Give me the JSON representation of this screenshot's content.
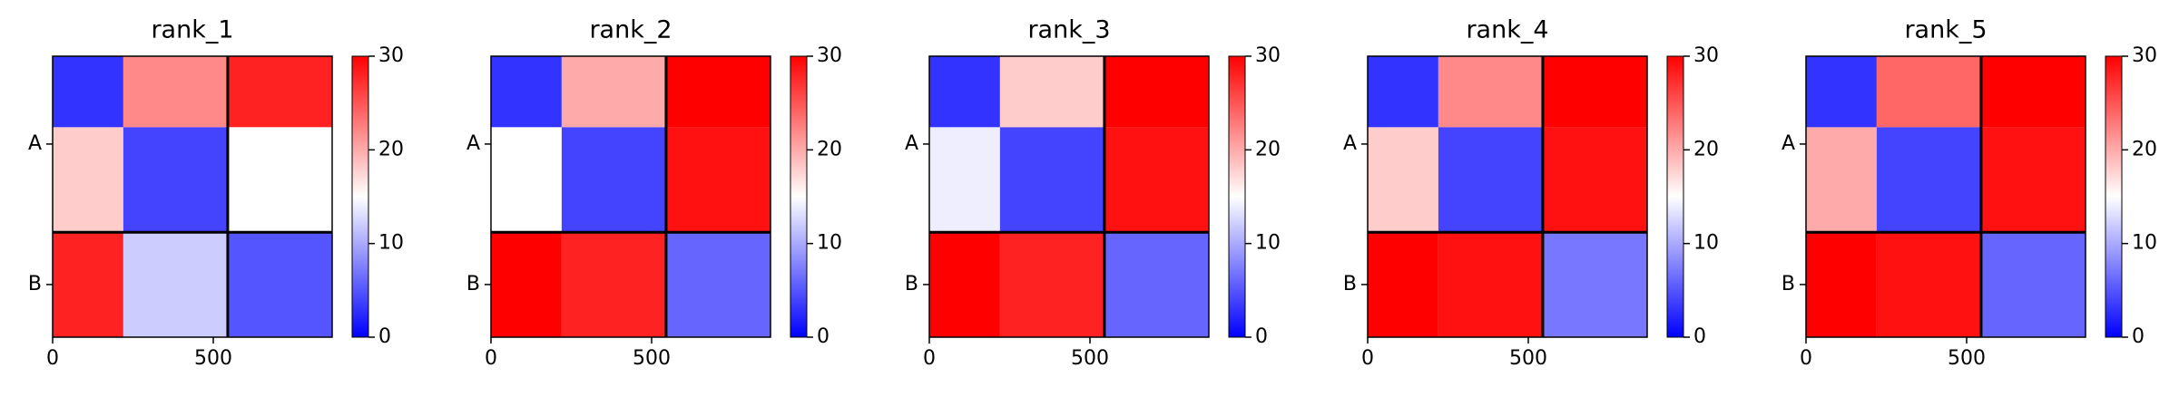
{
  "chart_data": [
    {
      "type": "heatmap",
      "title": "rank_1",
      "edges": [
        0,
        220,
        545,
        870
      ],
      "z": [
        [
          3,
          22,
          28
        ],
        [
          18,
          4,
          15
        ],
        [
          28,
          12,
          5
        ]
      ],
      "xlim": [
        0,
        870
      ],
      "ylim": [
        0,
        870
      ],
      "y_inverted": true,
      "xticks": [
        0,
        500
      ],
      "yticks": [
        {
          "value": 272,
          "label": "A"
        },
        {
          "value": 707,
          "label": "B"
        }
      ],
      "chain_breaks": [
        545
      ],
      "colorbar": {
        "lim": [
          0,
          30
        ],
        "ticks": [
          0,
          10,
          20,
          30
        ],
        "colors": [
          "#0000ff",
          "#ffffff",
          "#ff0000"
        ]
      }
    },
    {
      "type": "heatmap",
      "title": "rank_2",
      "edges": [
        0,
        220,
        545,
        870
      ],
      "z": [
        [
          3,
          20,
          30
        ],
        [
          15,
          4,
          29
        ],
        [
          30,
          28,
          6
        ]
      ],
      "xlim": [
        0,
        870
      ],
      "ylim": [
        0,
        870
      ],
      "y_inverted": true,
      "xticks": [
        0,
        500
      ],
      "yticks": [
        {
          "value": 272,
          "label": "A"
        },
        {
          "value": 707,
          "label": "B"
        }
      ],
      "chain_breaks": [
        545
      ],
      "colorbar": {
        "lim": [
          0,
          30
        ],
        "ticks": [
          0,
          10,
          20,
          30
        ],
        "colors": [
          "#0000ff",
          "#ffffff",
          "#ff0000"
        ]
      }
    },
    {
      "type": "heatmap",
      "title": "rank_3",
      "edges": [
        0,
        220,
        545,
        870
      ],
      "z": [
        [
          3,
          18,
          30
        ],
        [
          14,
          4,
          29
        ],
        [
          30,
          28,
          6
        ]
      ],
      "xlim": [
        0,
        870
      ],
      "ylim": [
        0,
        870
      ],
      "y_inverted": true,
      "xticks": [
        0,
        500
      ],
      "yticks": [
        {
          "value": 272,
          "label": "A"
        },
        {
          "value": 707,
          "label": "B"
        }
      ],
      "chain_breaks": [
        545
      ],
      "colorbar": {
        "lim": [
          0,
          30
        ],
        "ticks": [
          0,
          10,
          20,
          30
        ],
        "colors": [
          "#0000ff",
          "#ffffff",
          "#ff0000"
        ]
      }
    },
    {
      "type": "heatmap",
      "title": "rank_4",
      "edges": [
        0,
        220,
        545,
        870
      ],
      "z": [
        [
          3,
          22,
          30
        ],
        [
          18,
          4,
          29
        ],
        [
          30,
          29,
          7
        ]
      ],
      "xlim": [
        0,
        870
      ],
      "ylim": [
        0,
        870
      ],
      "y_inverted": true,
      "xticks": [
        0,
        500
      ],
      "yticks": [
        {
          "value": 272,
          "label": "A"
        },
        {
          "value": 707,
          "label": "B"
        }
      ],
      "chain_breaks": [
        545
      ],
      "colorbar": {
        "lim": [
          0,
          30
        ],
        "ticks": [
          0,
          10,
          20,
          30
        ],
        "colors": [
          "#0000ff",
          "#ffffff",
          "#ff0000"
        ]
      }
    },
    {
      "type": "heatmap",
      "title": "rank_5",
      "edges": [
        0,
        220,
        545,
        870
      ],
      "z": [
        [
          3,
          24,
          30
        ],
        [
          20,
          4,
          29
        ],
        [
          30,
          29,
          6
        ]
      ],
      "xlim": [
        0,
        870
      ],
      "ylim": [
        0,
        870
      ],
      "y_inverted": true,
      "xticks": [
        0,
        500
      ],
      "yticks": [
        {
          "value": 272,
          "label": "A"
        },
        {
          "value": 707,
          "label": "B"
        }
      ],
      "chain_breaks": [
        545
      ],
      "colorbar": {
        "lim": [
          0,
          30
        ],
        "ticks": [
          0,
          10,
          20,
          30
        ],
        "colors": [
          "#0000ff",
          "#ffffff",
          "#ff0000"
        ]
      }
    }
  ]
}
